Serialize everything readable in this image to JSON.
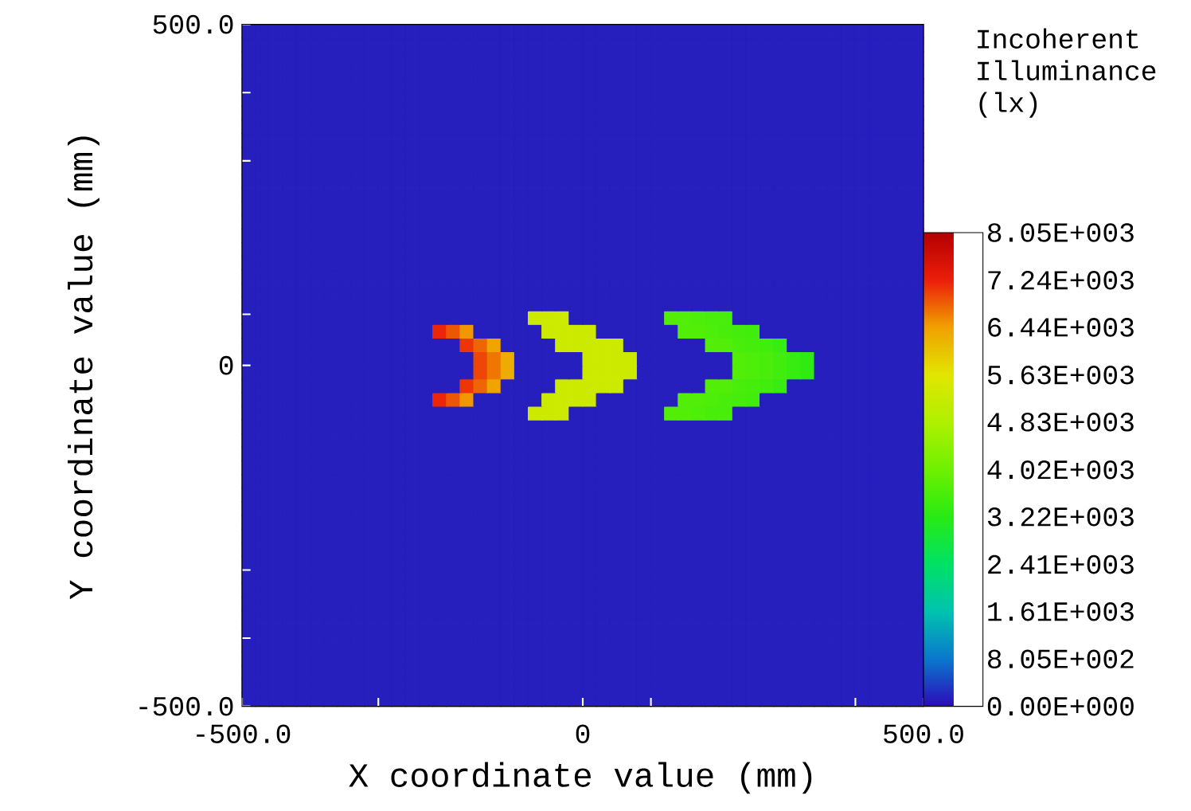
{
  "chart_data": {
    "type": "heatmap",
    "xlabel": "X coordinate value (mm)",
    "ylabel": "Y coordinate value (mm)",
    "clabel": "Incoherent Illuminance (lx)",
    "xlim": [
      -500,
      500
    ],
    "ylim": [
      -500,
      500
    ],
    "xticks": [
      {
        "value": -500,
        "label": "-500.0"
      },
      {
        "value": -300,
        "label": null
      },
      {
        "value": 0,
        "label": "0"
      },
      {
        "value": 100,
        "label": null
      },
      {
        "value": 400,
        "label": null
      },
      {
        "value": 500,
        "label": "500.0"
      }
    ],
    "yticks": [
      {
        "value": -500,
        "label": "-500.0"
      },
      {
        "value": -400,
        "label": null
      },
      {
        "value": -300,
        "label": null
      },
      {
        "value": 0,
        "label": "0"
      },
      {
        "value": 75,
        "label": null
      },
      {
        "value": 300,
        "label": null
      },
      {
        "value": 400,
        "label": null
      },
      {
        "value": 500,
        "label": "500.0"
      }
    ],
    "clim": [
      0,
      8050
    ],
    "cticks": [
      {
        "value": 0,
        "label": "0.00E+000"
      },
      {
        "value": 805,
        "label": "8.05E+002"
      },
      {
        "value": 1610,
        "label": "1.61E+003"
      },
      {
        "value": 2410,
        "label": "2.41E+003"
      },
      {
        "value": 3220,
        "label": "3.22E+003"
      },
      {
        "value": 4020,
        "label": "4.02E+003"
      },
      {
        "value": 4830,
        "label": "4.83E+003"
      },
      {
        "value": 5630,
        "label": "5.63E+003"
      },
      {
        "value": 6440,
        "label": "6.44E+003"
      },
      {
        "value": 7240,
        "label": "7.24E+003"
      },
      {
        "value": 8050,
        "label": "8.05E+003"
      }
    ],
    "cells": [
      [
        150,
        150,
        150,
        150,
        150,
        150,
        150,
        150,
        150,
        150,
        150,
        150,
        150,
        150,
        150,
        150,
        150,
        150,
        150,
        150,
        150,
        150,
        150,
        150,
        150,
        150,
        150,
        150,
        150,
        150,
        150,
        150,
        150,
        150,
        150,
        150,
        150,
        150,
        150,
        150,
        150,
        150,
        150,
        150,
        150,
        150,
        150,
        150,
        150,
        150
      ],
      [
        150,
        150,
        150,
        150,
        150,
        150,
        150,
        150,
        150,
        150,
        150,
        150,
        150,
        150,
        150,
        150,
        150,
        150,
        150,
        150,
        150,
        150,
        150,
        150,
        150,
        150,
        150,
        150,
        150,
        150,
        150,
        150,
        150,
        150,
        150,
        150,
        150,
        150,
        150,
        150,
        150,
        150,
        150,
        150,
        150,
        150,
        150,
        150,
        150,
        150
      ],
      [
        150,
        150,
        150,
        150,
        150,
        150,
        150,
        150,
        150,
        150,
        150,
        150,
        150,
        150,
        150,
        150,
        150,
        150,
        150,
        150,
        150,
        150,
        150,
        150,
        150,
        150,
        150,
        150,
        150,
        150,
        150,
        150,
        150,
        150,
        150,
        150,
        150,
        150,
        150,
        150,
        150,
        150,
        150,
        150,
        150,
        150,
        150,
        150,
        150,
        150
      ],
      [
        150,
        150,
        150,
        150,
        150,
        150,
        150,
        150,
        150,
        150,
        150,
        150,
        150,
        150,
        150,
        150,
        150,
        150,
        150,
        150,
        150,
        150,
        150,
        150,
        150,
        150,
        150,
        150,
        150,
        150,
        150,
        150,
        150,
        150,
        150,
        150,
        150,
        150,
        150,
        150,
        150,
        150,
        150,
        150,
        150,
        150,
        150,
        150,
        150,
        150
      ],
      [
        150,
        150,
        150,
        150,
        150,
        150,
        150,
        150,
        150,
        150,
        150,
        150,
        150,
        150,
        150,
        150,
        150,
        150,
        150,
        150,
        150,
        150,
        150,
        150,
        150,
        150,
        150,
        150,
        150,
        150,
        150,
        150,
        150,
        150,
        150,
        150,
        150,
        150,
        150,
        150,
        150,
        150,
        150,
        150,
        150,
        150,
        150,
        150,
        150,
        150
      ],
      [
        150,
        150,
        150,
        150,
        150,
        150,
        150,
        150,
        150,
        150,
        150,
        150,
        150,
        150,
        150,
        150,
        150,
        150,
        150,
        150,
        150,
        150,
        150,
        150,
        150,
        150,
        150,
        150,
        150,
        150,
        150,
        150,
        150,
        150,
        150,
        150,
        150,
        150,
        150,
        150,
        150,
        150,
        150,
        150,
        150,
        150,
        150,
        150,
        150,
        150
      ],
      [
        150,
        150,
        150,
        150,
        150,
        150,
        150,
        150,
        150,
        150,
        150,
        150,
        150,
        150,
        150,
        150,
        150,
        150,
        150,
        150,
        150,
        150,
        150,
        150,
        150,
        150,
        150,
        150,
        150,
        150,
        150,
        150,
        150,
        150,
        150,
        150,
        150,
        150,
        150,
        150,
        150,
        150,
        150,
        150,
        150,
        150,
        150,
        150,
        150,
        150
      ],
      [
        150,
        150,
        150,
        150,
        150,
        150,
        150,
        150,
        150,
        150,
        150,
        150,
        150,
        150,
        150,
        150,
        150,
        150,
        150,
        150,
        150,
        150,
        150,
        150,
        150,
        150,
        150,
        150,
        150,
        150,
        150,
        150,
        150,
        150,
        150,
        150,
        150,
        150,
        150,
        150,
        150,
        150,
        150,
        150,
        150,
        150,
        150,
        150,
        150,
        150
      ],
      [
        150,
        150,
        150,
        150,
        150,
        150,
        150,
        150,
        150,
        150,
        150,
        150,
        150,
        150,
        150,
        150,
        150,
        150,
        150,
        150,
        150,
        150,
        150,
        150,
        150,
        150,
        150,
        150,
        150,
        150,
        150,
        150,
        150,
        150,
        150,
        150,
        150,
        150,
        150,
        150,
        150,
        150,
        150,
        150,
        150,
        150,
        150,
        150,
        150,
        150
      ],
      [
        150,
        150,
        150,
        150,
        150,
        150,
        150,
        150,
        150,
        150,
        150,
        150,
        150,
        150,
        150,
        150,
        150,
        150,
        150,
        150,
        150,
        150,
        150,
        150,
        150,
        150,
        150,
        150,
        150,
        150,
        150,
        150,
        150,
        150,
        150,
        150,
        150,
        150,
        150,
        150,
        150,
        150,
        150,
        150,
        150,
        150,
        150,
        150,
        150,
        150
      ],
      [
        150,
        150,
        150,
        150,
        150,
        150,
        150,
        150,
        150,
        150,
        150,
        150,
        150,
        150,
        150,
        150,
        150,
        150,
        150,
        150,
        150,
        150,
        150,
        150,
        150,
        150,
        150,
        150,
        150,
        150,
        150,
        150,
        150,
        150,
        150,
        150,
        150,
        150,
        150,
        150,
        150,
        150,
        150,
        150,
        150,
        150,
        150,
        150,
        150,
        150
      ],
      [
        150,
        150,
        150,
        150,
        150,
        150,
        150,
        150,
        150,
        150,
        150,
        150,
        150,
        150,
        150,
        150,
        150,
        150,
        150,
        150,
        150,
        150,
        150,
        150,
        150,
        150,
        150,
        150,
        150,
        150,
        150,
        150,
        150,
        150,
        150,
        150,
        150,
        150,
        150,
        150,
        150,
        150,
        150,
        150,
        150,
        150,
        150,
        150,
        150,
        150
      ],
      [
        150,
        150,
        150,
        150,
        150,
        150,
        150,
        150,
        150,
        150,
        150,
        150,
        150,
        150,
        150,
        150,
        150,
        150,
        150,
        150,
        150,
        150,
        150,
        150,
        150,
        150,
        150,
        150,
        150,
        150,
        150,
        150,
        150,
        150,
        150,
        150,
        150,
        150,
        150,
        150,
        150,
        150,
        150,
        150,
        150,
        150,
        150,
        150,
        150,
        150
      ],
      [
        150,
        150,
        150,
        150,
        150,
        150,
        150,
        150,
        150,
        150,
        150,
        150,
        150,
        150,
        150,
        150,
        150,
        150,
        150,
        150,
        150,
        150,
        150,
        150,
        150,
        150,
        150,
        150,
        150,
        150,
        150,
        150,
        150,
        150,
        150,
        150,
        150,
        150,
        150,
        150,
        150,
        150,
        150,
        150,
        150,
        150,
        150,
        150,
        150,
        150
      ],
      [
        150,
        150,
        150,
        150,
        150,
        150,
        150,
        150,
        150,
        150,
        150,
        150,
        150,
        150,
        150,
        150,
        150,
        150,
        150,
        150,
        150,
        150,
        150,
        150,
        150,
        150,
        150,
        150,
        150,
        150,
        150,
        150,
        150,
        150,
        150,
        150,
        150,
        150,
        150,
        150,
        150,
        150,
        150,
        150,
        150,
        150,
        150,
        150,
        150,
        150
      ],
      [
        150,
        150,
        150,
        150,
        150,
        150,
        150,
        150,
        150,
        150,
        150,
        150,
        150,
        150,
        150,
        150,
        150,
        150,
        150,
        150,
        150,
        150,
        150,
        150,
        150,
        150,
        150,
        150,
        150,
        150,
        150,
        150,
        150,
        150,
        150,
        150,
        150,
        150,
        150,
        150,
        150,
        150,
        150,
        150,
        150,
        150,
        150,
        150,
        150,
        150
      ],
      [
        150,
        150,
        150,
        150,
        150,
        150,
        150,
        150,
        150,
        150,
        150,
        150,
        150,
        150,
        150,
        150,
        150,
        150,
        150,
        150,
        150,
        150,
        150,
        150,
        150,
        150,
        150,
        150,
        150,
        150,
        150,
        150,
        150,
        150,
        150,
        150,
        150,
        150,
        150,
        150,
        150,
        150,
        150,
        150,
        150,
        150,
        150,
        150,
        150,
        150
      ],
      [
        150,
        150,
        150,
        150,
        150,
        150,
        150,
        150,
        150,
        150,
        150,
        150,
        150,
        150,
        150,
        150,
        150,
        150,
        150,
        150,
        150,
        150,
        150,
        150,
        150,
        150,
        150,
        150,
        150,
        150,
        150,
        150,
        150,
        150,
        150,
        150,
        150,
        150,
        150,
        150,
        150,
        150,
        150,
        150,
        150,
        150,
        150,
        150,
        150,
        150
      ],
      [
        150,
        150,
        150,
        150,
        150,
        150,
        150,
        150,
        150,
        150,
        150,
        150,
        150,
        150,
        150,
        150,
        150,
        150,
        150,
        150,
        150,
        150,
        150,
        150,
        150,
        150,
        150,
        150,
        150,
        150,
        150,
        150,
        150,
        150,
        150,
        150,
        150,
        150,
        150,
        150,
        150,
        150,
        150,
        150,
        150,
        150,
        150,
        150,
        150,
        150
      ],
      [
        150,
        150,
        150,
        150,
        150,
        150,
        150,
        150,
        150,
        150,
        150,
        150,
        150,
        150,
        150,
        150,
        150,
        150,
        150,
        150,
        150,
        150,
        150,
        150,
        150,
        150,
        150,
        150,
        150,
        150,
        150,
        150,
        150,
        150,
        150,
        150,
        150,
        150,
        150,
        150,
        150,
        150,
        150,
        150,
        150,
        150,
        150,
        150,
        150,
        150
      ],
      [
        150,
        150,
        150,
        150,
        150,
        150,
        150,
        150,
        150,
        150,
        150,
        150,
        150,
        150,
        150,
        150,
        150,
        150,
        150,
        150,
        150,
        150,
        150,
        150,
        150,
        150,
        150,
        150,
        150,
        150,
        150,
        150,
        150,
        150,
        150,
        150,
        150,
        150,
        150,
        150,
        150,
        150,
        150,
        150,
        150,
        150,
        150,
        150,
        150,
        150
      ],
      [
        150,
        150,
        150,
        150,
        150,
        150,
        150,
        150,
        150,
        150,
        150,
        150,
        150,
        150,
        150,
        150,
        150,
        150,
        150,
        150,
        150,
        5300,
        5300,
        5300,
        150,
        150,
        150,
        150,
        150,
        150,
        150,
        3700,
        3700,
        3650,
        3600,
        3600,
        150,
        150,
        150,
        150,
        150,
        150,
        150,
        150,
        150,
        150,
        150,
        150,
        150,
        150
      ],
      [
        150,
        150,
        150,
        150,
        150,
        150,
        150,
        150,
        150,
        150,
        150,
        150,
        150,
        150,
        7200,
        6900,
        6500,
        150,
        150,
        150,
        150,
        150,
        5300,
        5300,
        5300,
        5300,
        150,
        150,
        150,
        150,
        150,
        150,
        3700,
        3700,
        3650,
        3600,
        3550,
        3500,
        150,
        150,
        150,
        150,
        150,
        150,
        150,
        150,
        150,
        150,
        150,
        150
      ],
      [
        150,
        150,
        150,
        150,
        150,
        150,
        150,
        150,
        150,
        150,
        150,
        150,
        150,
        150,
        150,
        150,
        7100,
        6800,
        6400,
        150,
        150,
        150,
        150,
        5300,
        5300,
        5300,
        5300,
        5300,
        150,
        150,
        150,
        150,
        150,
        150,
        3700,
        3700,
        3600,
        3550,
        3500,
        3400,
        150,
        150,
        150,
        150,
        150,
        150,
        150,
        150,
        150,
        150
      ],
      [
        150,
        150,
        150,
        150,
        150,
        150,
        150,
        150,
        150,
        150,
        150,
        150,
        150,
        150,
        150,
        150,
        150,
        7000,
        6700,
        6300,
        150,
        150,
        150,
        150,
        150,
        5300,
        5300,
        5300,
        5300,
        150,
        150,
        150,
        150,
        150,
        150,
        150,
        3700,
        3650,
        3600,
        3500,
        3400,
        3300,
        150,
        150,
        150,
        150,
        150,
        150,
        150,
        150
      ],
      [
        150,
        150,
        150,
        150,
        150,
        150,
        150,
        150,
        150,
        150,
        150,
        150,
        150,
        150,
        150,
        150,
        150,
        7000,
        6700,
        6300,
        150,
        150,
        150,
        150,
        150,
        5300,
        5300,
        5300,
        5300,
        150,
        150,
        150,
        150,
        150,
        150,
        150,
        3700,
        3650,
        3600,
        3500,
        3400,
        3300,
        150,
        150,
        150,
        150,
        150,
        150,
        150,
        150
      ],
      [
        150,
        150,
        150,
        150,
        150,
        150,
        150,
        150,
        150,
        150,
        150,
        150,
        150,
        150,
        150,
        150,
        7100,
        6800,
        6400,
        150,
        150,
        150,
        150,
        5300,
        5300,
        5300,
        5300,
        5300,
        150,
        150,
        150,
        150,
        150,
        150,
        3700,
        3700,
        3600,
        3550,
        3500,
        3400,
        150,
        150,
        150,
        150,
        150,
        150,
        150,
        150,
        150,
        150
      ],
      [
        150,
        150,
        150,
        150,
        150,
        150,
        150,
        150,
        150,
        150,
        150,
        150,
        150,
        150,
        7200,
        6900,
        6500,
        150,
        150,
        150,
        150,
        150,
        5300,
        5300,
        5300,
        5300,
        150,
        150,
        150,
        150,
        150,
        150,
        3700,
        3700,
        3650,
        3600,
        3550,
        3500,
        150,
        150,
        150,
        150,
        150,
        150,
        150,
        150,
        150,
        150,
        150,
        150
      ],
      [
        150,
        150,
        150,
        150,
        150,
        150,
        150,
        150,
        150,
        150,
        150,
        150,
        150,
        150,
        150,
        150,
        150,
        150,
        150,
        150,
        150,
        5300,
        5300,
        5300,
        150,
        150,
        150,
        150,
        150,
        150,
        150,
        3700,
        3700,
        3650,
        3600,
        3600,
        150,
        150,
        150,
        150,
        150,
        150,
        150,
        150,
        150,
        150,
        150,
        150,
        150,
        150
      ],
      [
        150,
        150,
        150,
        150,
        150,
        150,
        150,
        150,
        150,
        150,
        150,
        150,
        150,
        150,
        150,
        150,
        150,
        150,
        150,
        150,
        150,
        150,
        150,
        150,
        150,
        150,
        150,
        150,
        150,
        150,
        150,
        150,
        150,
        150,
        150,
        150,
        150,
        150,
        150,
        150,
        150,
        150,
        150,
        150,
        150,
        150,
        150,
        150,
        150,
        150
      ],
      [
        150,
        150,
        150,
        150,
        150,
        150,
        150,
        150,
        150,
        150,
        150,
        150,
        150,
        150,
        150,
        150,
        150,
        150,
        150,
        150,
        150,
        150,
        150,
        150,
        150,
        150,
        150,
        150,
        150,
        150,
        150,
        150,
        150,
        150,
        150,
        150,
        150,
        150,
        150,
        150,
        150,
        150,
        150,
        150,
        150,
        150,
        150,
        150,
        150,
        150
      ],
      [
        150,
        150,
        150,
        150,
        150,
        150,
        150,
        150,
        150,
        150,
        150,
        150,
        150,
        150,
        150,
        150,
        150,
        150,
        150,
        150,
        150,
        150,
        150,
        150,
        150,
        150,
        150,
        150,
        150,
        150,
        150,
        150,
        150,
        150,
        150,
        150,
        150,
        150,
        150,
        150,
        150,
        150,
        150,
        150,
        150,
        150,
        150,
        150,
        150,
        150
      ],
      [
        150,
        150,
        150,
        150,
        150,
        150,
        150,
        150,
        150,
        150,
        150,
        150,
        150,
        150,
        150,
        150,
        150,
        150,
        150,
        150,
        150,
        150,
        150,
        150,
        150,
        150,
        150,
        150,
        150,
        150,
        150,
        150,
        150,
        150,
        150,
        150,
        150,
        150,
        150,
        150,
        150,
        150,
        150,
        150,
        150,
        150,
        150,
        150,
        150,
        150
      ],
      [
        150,
        150,
        150,
        150,
        150,
        150,
        150,
        150,
        150,
        150,
        150,
        150,
        150,
        150,
        150,
        150,
        150,
        150,
        150,
        150,
        150,
        150,
        150,
        150,
        150,
        150,
        150,
        150,
        150,
        150,
        150,
        150,
        150,
        150,
        150,
        150,
        150,
        150,
        150,
        150,
        150,
        150,
        150,
        150,
        150,
        150,
        150,
        150,
        150,
        150
      ],
      [
        150,
        150,
        150,
        150,
        150,
        150,
        150,
        150,
        150,
        150,
        150,
        150,
        150,
        150,
        150,
        150,
        150,
        150,
        150,
        150,
        150,
        150,
        150,
        150,
        150,
        150,
        150,
        150,
        150,
        150,
        150,
        150,
        150,
        150,
        150,
        150,
        150,
        150,
        150,
        150,
        150,
        150,
        150,
        150,
        150,
        150,
        150,
        150,
        150,
        150
      ],
      [
        150,
        150,
        150,
        150,
        150,
        150,
        150,
        150,
        150,
        150,
        150,
        150,
        150,
        150,
        150,
        150,
        150,
        150,
        150,
        150,
        150,
        150,
        150,
        150,
        150,
        150,
        150,
        150,
        150,
        150,
        150,
        150,
        150,
        150,
        150,
        150,
        150,
        150,
        150,
        150,
        150,
        150,
        150,
        150,
        150,
        150,
        150,
        150,
        150,
        150
      ],
      [
        150,
        150,
        150,
        150,
        150,
        150,
        150,
        150,
        150,
        150,
        150,
        150,
        150,
        150,
        150,
        150,
        150,
        150,
        150,
        150,
        150,
        150,
        150,
        150,
        150,
        150,
        150,
        150,
        150,
        150,
        150,
        150,
        150,
        150,
        150,
        150,
        150,
        150,
        150,
        150,
        150,
        150,
        150,
        150,
        150,
        150,
        150,
        150,
        150,
        150
      ],
      [
        150,
        150,
        150,
        150,
        150,
        150,
        150,
        150,
        150,
        150,
        150,
        150,
        150,
        150,
        150,
        150,
        150,
        150,
        150,
        150,
        150,
        150,
        150,
        150,
        150,
        150,
        150,
        150,
        150,
        150,
        150,
        150,
        150,
        150,
        150,
        150,
        150,
        150,
        150,
        150,
        150,
        150,
        150,
        150,
        150,
        150,
        150,
        150,
        150,
        150
      ],
      [
        150,
        150,
        150,
        150,
        150,
        150,
        150,
        150,
        150,
        150,
        150,
        150,
        150,
        150,
        150,
        150,
        150,
        150,
        150,
        150,
        150,
        150,
        150,
        150,
        150,
        150,
        150,
        150,
        150,
        150,
        150,
        150,
        150,
        150,
        150,
        150,
        150,
        150,
        150,
        150,
        150,
        150,
        150,
        150,
        150,
        150,
        150,
        150,
        150,
        150
      ],
      [
        150,
        150,
        150,
        150,
        150,
        150,
        150,
        150,
        150,
        150,
        150,
        150,
        150,
        150,
        150,
        150,
        150,
        150,
        150,
        150,
        150,
        150,
        150,
        150,
        150,
        150,
        150,
        150,
        150,
        150,
        150,
        150,
        150,
        150,
        150,
        150,
        150,
        150,
        150,
        150,
        150,
        150,
        150,
        150,
        150,
        150,
        150,
        150,
        150,
        150
      ],
      [
        150,
        150,
        150,
        150,
        150,
        150,
        150,
        150,
        150,
        150,
        150,
        150,
        150,
        150,
        150,
        150,
        150,
        150,
        150,
        150,
        150,
        150,
        150,
        150,
        150,
        150,
        150,
        150,
        150,
        150,
        150,
        150,
        150,
        150,
        150,
        150,
        150,
        150,
        150,
        150,
        150,
        150,
        150,
        150,
        150,
        150,
        150,
        150,
        150,
        150
      ],
      [
        150,
        150,
        150,
        150,
        150,
        150,
        150,
        150,
        150,
        150,
        150,
        150,
        150,
        150,
        150,
        150,
        150,
        150,
        150,
        150,
        150,
        150,
        150,
        150,
        150,
        150,
        150,
        150,
        150,
        150,
        150,
        150,
        150,
        150,
        150,
        150,
        150,
        150,
        150,
        150,
        150,
        150,
        150,
        150,
        150,
        150,
        150,
        150,
        150,
        150
      ],
      [
        150,
        150,
        150,
        150,
        150,
        150,
        150,
        150,
        150,
        150,
        150,
        150,
        150,
        150,
        150,
        150,
        150,
        150,
        150,
        150,
        150,
        150,
        150,
        150,
        150,
        150,
        150,
        150,
        150,
        150,
        150,
        150,
        150,
        150,
        150,
        150,
        150,
        150,
        150,
        150,
        150,
        150,
        150,
        150,
        150,
        150,
        150,
        150,
        150,
        150
      ],
      [
        150,
        150,
        150,
        150,
        150,
        150,
        150,
        150,
        150,
        150,
        150,
        150,
        150,
        150,
        150,
        150,
        150,
        150,
        150,
        150,
        150,
        150,
        150,
        150,
        150,
        150,
        150,
        150,
        150,
        150,
        150,
        150,
        150,
        150,
        150,
        150,
        150,
        150,
        150,
        150,
        150,
        150,
        150,
        150,
        150,
        150,
        150,
        150,
        150,
        150
      ],
      [
        150,
        150,
        150,
        150,
        150,
        150,
        150,
        150,
        150,
        150,
        150,
        150,
        150,
        150,
        150,
        150,
        150,
        150,
        150,
        150,
        150,
        150,
        150,
        150,
        150,
        150,
        150,
        150,
        150,
        150,
        150,
        150,
        150,
        150,
        150,
        150,
        150,
        150,
        150,
        150,
        150,
        150,
        150,
        150,
        150,
        150,
        150,
        150,
        150,
        150
      ],
      [
        150,
        150,
        150,
        150,
        150,
        150,
        150,
        150,
        150,
        150,
        150,
        150,
        150,
        150,
        150,
        150,
        150,
        150,
        150,
        150,
        150,
        150,
        150,
        150,
        150,
        150,
        150,
        150,
        150,
        150,
        150,
        150,
        150,
        150,
        150,
        150,
        150,
        150,
        150,
        150,
        150,
        150,
        150,
        150,
        150,
        150,
        150,
        150,
        150,
        150
      ],
      [
        150,
        150,
        150,
        150,
        150,
        150,
        150,
        150,
        150,
        150,
        150,
        150,
        150,
        150,
        150,
        150,
        150,
        150,
        150,
        150,
        150,
        150,
        150,
        150,
        150,
        150,
        150,
        150,
        150,
        150,
        150,
        150,
        150,
        150,
        150,
        150,
        150,
        150,
        150,
        150,
        150,
        150,
        150,
        150,
        150,
        150,
        150,
        150,
        150,
        150
      ],
      [
        150,
        150,
        150,
        150,
        150,
        150,
        150,
        150,
        150,
        150,
        150,
        150,
        150,
        150,
        150,
        150,
        150,
        150,
        150,
        150,
        150,
        150,
        150,
        150,
        150,
        150,
        150,
        150,
        150,
        150,
        150,
        150,
        150,
        150,
        150,
        150,
        150,
        150,
        150,
        150,
        150,
        150,
        150,
        150,
        150,
        150,
        150,
        150,
        150,
        150
      ],
      [
        150,
        150,
        150,
        150,
        150,
        150,
        150,
        150,
        150,
        150,
        150,
        150,
        150,
        150,
        150,
        150,
        150,
        150,
        150,
        150,
        150,
        150,
        150,
        150,
        150,
        150,
        150,
        150,
        150,
        150,
        150,
        150,
        150,
        150,
        150,
        150,
        150,
        150,
        150,
        150,
        150,
        150,
        150,
        150,
        150,
        150,
        150,
        150,
        150,
        150
      ],
      [
        150,
        150,
        150,
        150,
        150,
        150,
        150,
        150,
        150,
        150,
        150,
        150,
        150,
        150,
        150,
        150,
        150,
        150,
        150,
        150,
        150,
        150,
        150,
        150,
        150,
        150,
        150,
        150,
        150,
        150,
        150,
        150,
        150,
        150,
        150,
        150,
        150,
        150,
        150,
        150,
        150,
        150,
        150,
        150,
        150,
        150,
        150,
        150,
        150,
        150
      ]
    ]
  }
}
